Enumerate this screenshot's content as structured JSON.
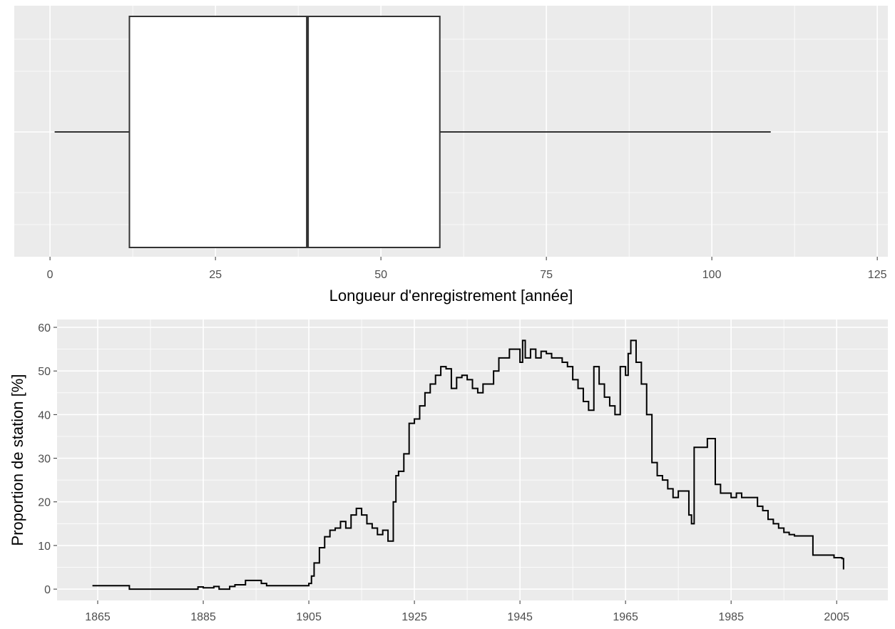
{
  "chart_data": [
    {
      "type": "box",
      "xlabel": "Longueur d'enregistrement [année]",
      "whisker_low": 0.7,
      "q1": 12,
      "median": 38.9,
      "q3": 58.9,
      "whisker_high": 108.9,
      "xlim": [
        -5.4,
        126.6
      ],
      "xticks": [
        0,
        25,
        50,
        75,
        100,
        125
      ],
      "box_color": "#ffffff",
      "line_color": "#333333",
      "grid": true
    },
    {
      "type": "line",
      "ylabel": "Proportion de station [%]",
      "step": true,
      "x": [
        1864,
        1870.5,
        1871,
        1883,
        1884,
        1885,
        1887,
        1888,
        1890,
        1891,
        1893,
        1894,
        1896,
        1897,
        1905,
        1905.5,
        1906,
        1907,
        1908,
        1909,
        1910,
        1911,
        1912,
        1913,
        1914,
        1915,
        1916,
        1917,
        1918,
        1919,
        1920,
        1921,
        1921.5,
        1922,
        1923,
        1924,
        1925,
        1926,
        1927,
        1928,
        1929,
        1930,
        1931,
        1932,
        1933,
        1934,
        1935,
        1936,
        1937,
        1938,
        1939,
        1940,
        1941,
        1942,
        1943,
        1944,
        1945,
        1945.5,
        1946,
        1947,
        1948,
        1949,
        1950,
        1951,
        1952,
        1953,
        1954,
        1955,
        1956,
        1957,
        1958,
        1959,
        1960,
        1961,
        1962,
        1963,
        1964,
        1965,
        1965.5,
        1966,
        1967,
        1968,
        1969,
        1970,
        1971,
        1972,
        1973,
        1974,
        1975,
        1976,
        1977,
        1977.5,
        1978,
        1980,
        1980.5,
        1981,
        1982,
        1983,
        1985,
        1986,
        1987,
        1988,
        1989,
        1990,
        1991,
        1992,
        1993,
        1994,
        1995,
        1996,
        1997,
        2000,
        2000.5,
        2004,
        2004.5,
        2006,
        2006.3
      ],
      "values": [
        0.8,
        0.8,
        0,
        0,
        0.5,
        0.3,
        0.6,
        0,
        0.6,
        1,
        2,
        2,
        1.3,
        0.8,
        1.3,
        3,
        6,
        9.5,
        12,
        13.5,
        14,
        15.5,
        14,
        17,
        18.5,
        17,
        15,
        14,
        12.5,
        13.5,
        11,
        20,
        26,
        27,
        31,
        38,
        39,
        42,
        45,
        47,
        49,
        51,
        50.5,
        46,
        48.5,
        49,
        48,
        46,
        45,
        47,
        47,
        50,
        53,
        53,
        55,
        55,
        52,
        57,
        53,
        55,
        53,
        54.5,
        54,
        53,
        53,
        52,
        51,
        48,
        46,
        43,
        41,
        51,
        47,
        44,
        42,
        40,
        51,
        49,
        54,
        57,
        52,
        47,
        40,
        29,
        26,
        25,
        23,
        21,
        22.5,
        22.5,
        17,
        15,
        32.5,
        32.5,
        34.5,
        34.5,
        24,
        22,
        21,
        22,
        21,
        21,
        21,
        19,
        18,
        16,
        15,
        14,
        13,
        12.5,
        12.2,
        12.2,
        7.8,
        7.8,
        7.2,
        7,
        4.5
      ],
      "color": "#000000",
      "xlim": [
        1857.3,
        2014.7
      ],
      "xticks": [
        1865,
        1885,
        1905,
        1925,
        1945,
        1965,
        1985,
        2005
      ],
      "ylim": [
        -2.6,
        61.8
      ],
      "yticks": [
        0,
        10,
        20,
        30,
        40,
        50,
        60
      ],
      "grid": true
    }
  ]
}
